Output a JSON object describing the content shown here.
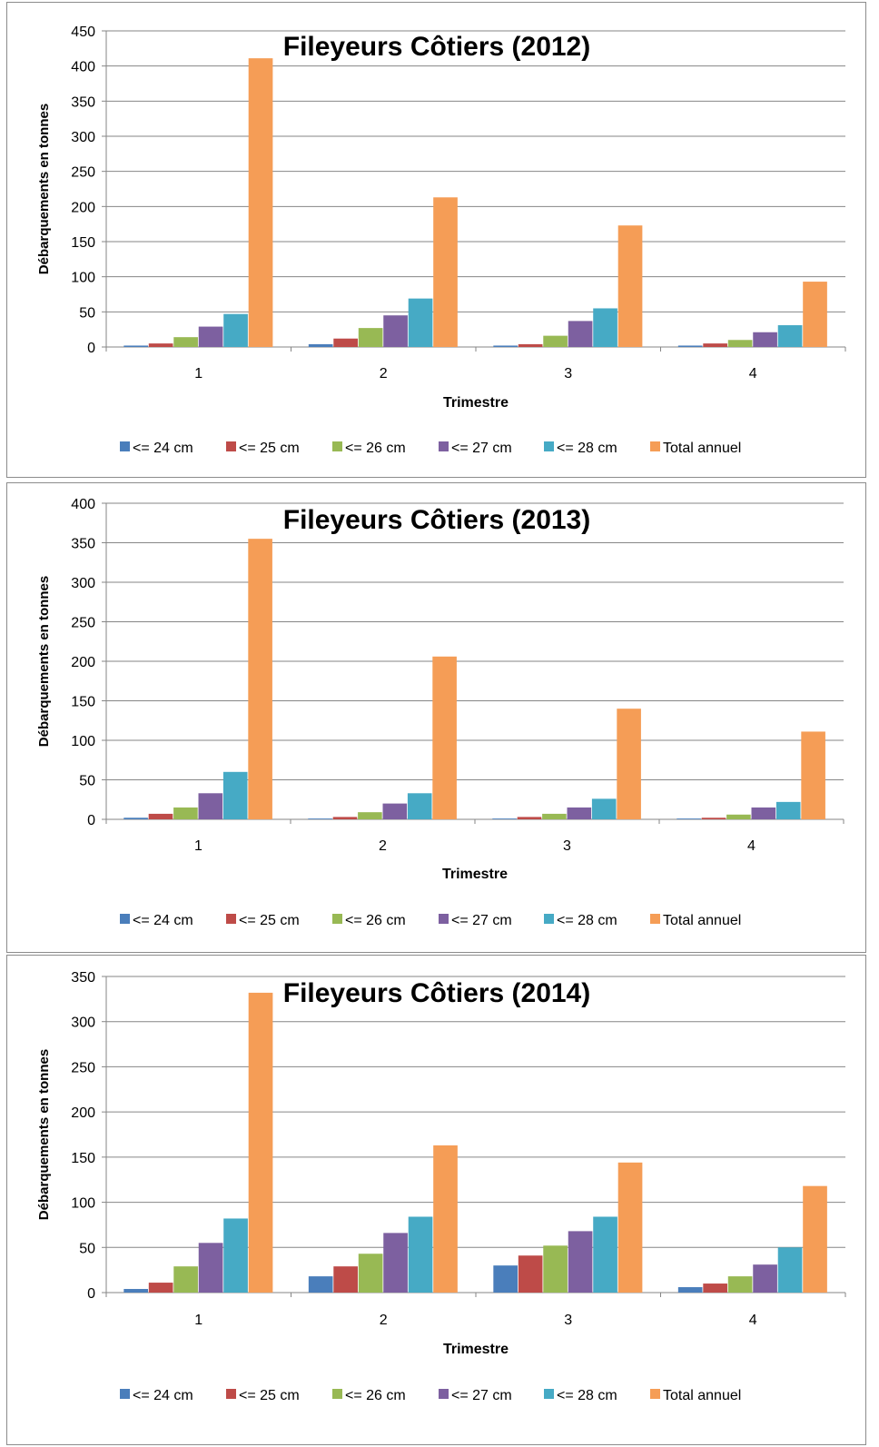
{
  "colors": {
    "series": [
      "#4a7ebb",
      "#be4b48",
      "#98b954",
      "#7d60a0",
      "#46aac5",
      "#f59d56"
    ],
    "grid": "#868686",
    "axis": "#868686",
    "text": "#000000"
  },
  "chart_data": [
    {
      "type": "bar",
      "title": "Fileyeurs Côtiers (2012)",
      "xlabel": "Trimestre",
      "ylabel": "Débarquements en tonnes",
      "ylim": [
        0,
        450
      ],
      "ystep": 50,
      "yticks": [
        "0",
        "50",
        "100",
        "150",
        "200",
        "250",
        "300",
        "350",
        "400",
        "450"
      ],
      "categories": [
        "1",
        "2",
        "3",
        "4"
      ],
      "grid": true,
      "legend": "bottom",
      "series": [
        {
          "name": "<= 24 cm",
          "values": [
            2,
            4,
            2,
            2
          ]
        },
        {
          "name": "<= 25 cm",
          "values": [
            5,
            12,
            4,
            5
          ]
        },
        {
          "name": "<= 26 cm",
          "values": [
            14,
            27,
            16,
            10
          ]
        },
        {
          "name": "<= 27 cm",
          "values": [
            29,
            45,
            37,
            21
          ]
        },
        {
          "name": "<= 28 cm",
          "values": [
            47,
            69,
            55,
            31
          ]
        },
        {
          "name": "Total annuel",
          "values": [
            411,
            213,
            173,
            93
          ]
        }
      ]
    },
    {
      "type": "bar",
      "title": "Fileyeurs Côtiers (2013)",
      "xlabel": "Trimestre",
      "ylabel": "Débarquements en tonnes",
      "ylim": [
        0,
        400
      ],
      "ystep": 50,
      "yticks": [
        "0",
        "50",
        "100",
        "150",
        "200",
        "250",
        "300",
        "350",
        "400"
      ],
      "categories": [
        "1",
        "2",
        "3",
        "4"
      ],
      "grid": true,
      "legend": "bottom",
      "series": [
        {
          "name": "<= 24 cm",
          "values": [
            2,
            1,
            1,
            1
          ]
        },
        {
          "name": "<= 25 cm",
          "values": [
            7,
            3,
            3,
            2
          ]
        },
        {
          "name": "<= 26 cm",
          "values": [
            15,
            9,
            7,
            6
          ]
        },
        {
          "name": "<= 27 cm",
          "values": [
            33,
            20,
            15,
            15
          ]
        },
        {
          "name": "<= 28 cm",
          "values": [
            60,
            33,
            26,
            22
          ]
        },
        {
          "name": "Total annuel",
          "values": [
            355,
            206,
            140,
            111
          ]
        }
      ]
    },
    {
      "type": "bar",
      "title": "Fileyeurs Côtiers (2014)",
      "xlabel": "Trimestre",
      "ylabel": "Débarquements en tonnes",
      "ylim": [
        0,
        350
      ],
      "ystep": 50,
      "yticks": [
        "0",
        "50",
        "100",
        "150",
        "200",
        "250",
        "300",
        "350"
      ],
      "categories": [
        "1",
        "2",
        "3",
        "4"
      ],
      "grid": true,
      "legend": "bottom",
      "series": [
        {
          "name": "<= 24 cm",
          "values": [
            4,
            18,
            30,
            6
          ]
        },
        {
          "name": "<= 25 cm",
          "values": [
            11,
            29,
            41,
            10
          ]
        },
        {
          "name": "<= 26 cm",
          "values": [
            29,
            43,
            52,
            18
          ]
        },
        {
          "name": "<= 27 cm",
          "values": [
            55,
            66,
            68,
            31
          ]
        },
        {
          "name": "<= 28 cm",
          "values": [
            82,
            84,
            84,
            50
          ]
        },
        {
          "name": "Total annuel",
          "values": [
            332,
            163,
            144,
            118
          ]
        }
      ]
    }
  ]
}
